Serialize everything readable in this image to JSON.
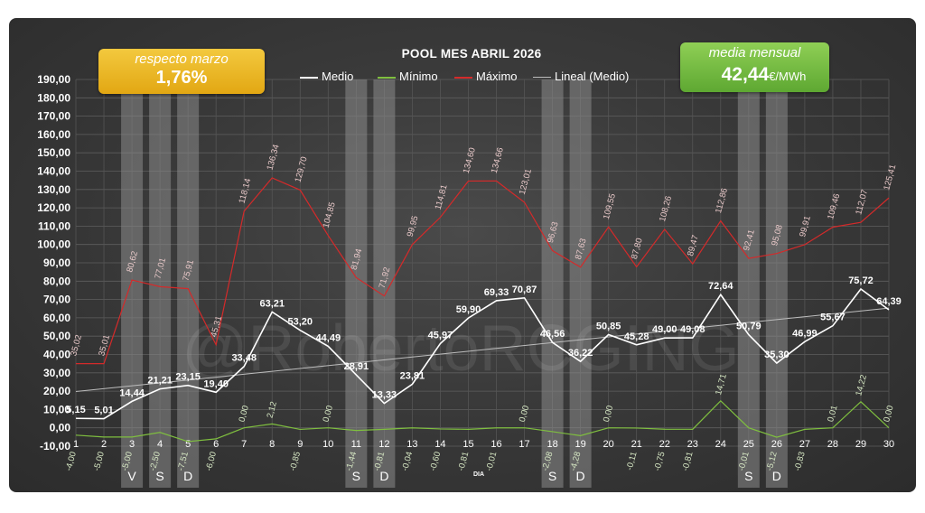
{
  "badges": {
    "left_caption": "respecto marzo",
    "left_value": "1,76%",
    "right_caption": "media mensual",
    "right_value": "42,44",
    "right_unit": "€/MWh"
  },
  "watermark": "@RobertoRCGING",
  "colors": {
    "background": "#3a3a3a",
    "medio": "#ffffff",
    "minimo": "#7fbf3f",
    "maximo": "#d42a2a",
    "lineal": "#bdbdbd",
    "weekend_band": "#8a8a8a",
    "badge_left": "#f0c030",
    "badge_right": "#7cc04a"
  },
  "chart_data": {
    "type": "line",
    "title": "POOL  MES ABRIL 2026",
    "xlabel": "DIA",
    "ylabel": "",
    "ylim": [
      -10,
      190
    ],
    "yticks": [
      "-10,00",
      "0,00",
      "10,00",
      "20,00",
      "30,00",
      "40,00",
      "50,00",
      "60,00",
      "70,00",
      "80,00",
      "90,00",
      "100,00",
      "110,00",
      "120,00",
      "130,00",
      "140,00",
      "150,00",
      "160,00",
      "170,00",
      "180,00",
      "190,00"
    ],
    "x": [
      1,
      2,
      3,
      4,
      5,
      6,
      7,
      8,
      9,
      10,
      11,
      12,
      13,
      14,
      15,
      16,
      17,
      18,
      19,
      20,
      21,
      22,
      23,
      24,
      25,
      26,
      27,
      28,
      29,
      30
    ],
    "weekend_days": [
      {
        "day": 3,
        "label": "V"
      },
      {
        "day": 4,
        "label": "S"
      },
      {
        "day": 5,
        "label": "D"
      },
      {
        "day": 11,
        "label": "S"
      },
      {
        "day": 12,
        "label": "D"
      },
      {
        "day": 18,
        "label": "S"
      },
      {
        "day": 19,
        "label": "D"
      },
      {
        "day": 25,
        "label": "S"
      },
      {
        "day": 26,
        "label": "D"
      }
    ],
    "legend": [
      "Medio",
      "Mínimo",
      "Máximo",
      "Lineal (Medio)"
    ],
    "series": [
      {
        "name": "Medio",
        "values": [
          5.15,
          5.01,
          14.44,
          21.21,
          23.15,
          19.4,
          33.48,
          63.21,
          53.2,
          44.49,
          28.91,
          13.33,
          23.81,
          45.97,
          59.9,
          69.33,
          70.87,
          46.56,
          36.22,
          50.85,
          45.28,
          49.0,
          49.08,
          72.64,
          50.79,
          35.3,
          46.99,
          55.67,
          75.72,
          64.39
        ],
        "labels": [
          "5,15",
          "5,01",
          "14,44",
          "21,21",
          "23,15",
          "19,40",
          "33,48",
          "63,21",
          "53,20",
          "44,49",
          "28,91",
          "13,33",
          "23,81",
          "45,97",
          "59,90",
          "69,33",
          "70,87",
          "46,56",
          "36,22",
          "50,85",
          "45,28",
          "49,00",
          "49,08",
          "72,64",
          "50,79",
          "35,30",
          "46,99",
          "55,67",
          "75,72",
          "64,39"
        ]
      },
      {
        "name": "Mínimo",
        "values": [
          -4.0,
          -5.0,
          -5.0,
          -2.5,
          -7.51,
          -6.0,
          0.0,
          2.12,
          -0.85,
          0.0,
          -1.44,
          -0.81,
          -0.04,
          -0.6,
          -0.81,
          -0.01,
          0.0,
          -2.08,
          -4.28,
          0.0,
          -0.11,
          -0.75,
          -0.81,
          14.71,
          -0.01,
          -5.12,
          -0.83,
          0.01,
          14.22,
          0.0
        ],
        "labels": [
          "-4,00",
          "-5,00",
          "-5,00",
          "-2,50",
          "-7,51",
          "-6,00",
          "0,00",
          "2,12",
          "-0,85",
          "0,00",
          "-1,44",
          "-0,81",
          "-0,04",
          "-0,60",
          "-0,81",
          "-0,01",
          "0,00",
          "-2,08",
          "-4,28",
          "0,00",
          "-0,11",
          "-0,75",
          "-0,81",
          "14,71",
          "-0,01",
          "-5,12",
          "-0,83",
          "0,01",
          "14,22",
          "0,00"
        ]
      },
      {
        "name": "Máximo",
        "values": [
          35.02,
          35.01,
          80.62,
          77.01,
          75.91,
          45.31,
          118.14,
          136.34,
          129.7,
          104.85,
          81.94,
          71.92,
          99.95,
          114.81,
          134.6,
          134.66,
          123.01,
          96.63,
          87.63,
          109.55,
          87.8,
          108.26,
          89.47,
          112.86,
          92.41,
          95.08,
          99.91,
          109.46,
          112.07,
          125.41
        ],
        "labels": [
          "35,02",
          "35,01",
          "80,62",
          "77,01",
          "75,91",
          "45,31",
          "118,14",
          "136,34",
          "129,70",
          "104,85",
          "81,94",
          "71,92",
          "99,95",
          "114,81",
          "134,60",
          "134,66",
          "123,01",
          "96,63",
          "87,63",
          "109,55",
          "87,80",
          "108,26",
          "89,47",
          "112,86",
          "92,41",
          "95,08",
          "99,91",
          "109,46",
          "112,07",
          "125,41"
        ]
      },
      {
        "name": "Lineal (Medio)",
        "values": [
          19.8,
          65.3
        ],
        "x": [
          1,
          30
        ]
      }
    ]
  }
}
